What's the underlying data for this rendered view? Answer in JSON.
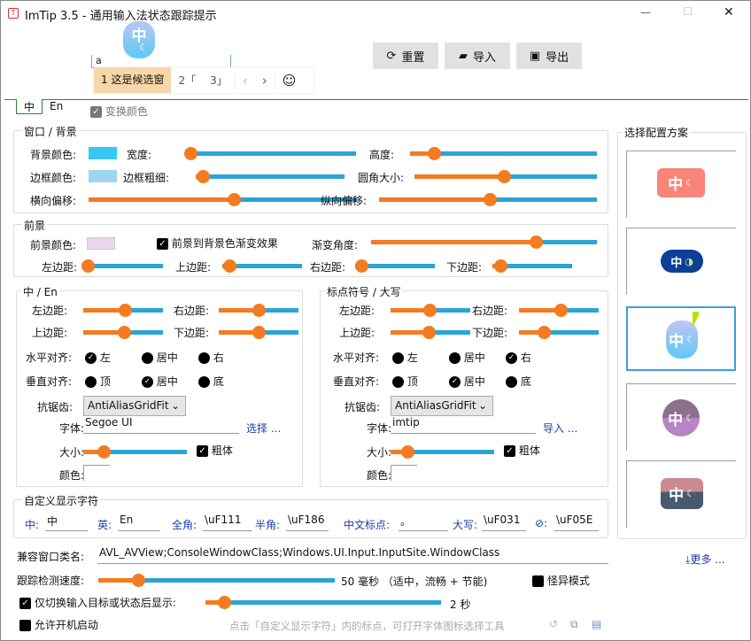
{
  "window": {
    "title": "ImTip 3.5 - 通用输入法状态跟踪提示",
    "minimize": "—",
    "maximize": "☐",
    "close": "✕"
  },
  "preview": {
    "badge_char": "中",
    "input_value": "a",
    "candidates": [
      "1 这是候选窗",
      "2「",
      "3」"
    ],
    "prev": "‹",
    "next": "›",
    "emoji": "☺"
  },
  "toolbar": {
    "reset": "重置",
    "import": "导入",
    "export": "导出"
  },
  "tabs": [
    "中",
    "En"
  ],
  "swap_colors": "变换颜色",
  "window_bg": {
    "title": "窗口 / 背景",
    "bg_color": "背景颜色:",
    "bg_color_value": "#38c6f4",
    "width": "宽度:",
    "height": "高度:",
    "border_color": "边框颜色:",
    "border_color_value": "#9ed3f2",
    "border_width": "边框粗细:",
    "corner": "圆角大小:",
    "h_offset": "横向偏移:",
    "v_offset": "纵向偏移:"
  },
  "foreground": {
    "title": "前景",
    "color": "前景颜色:",
    "color_value": "#ead6ea",
    "gradient": "前景到背景色渐变效果",
    "gradient_angle": "渐变角度:",
    "left": "左边距:",
    "top": "上边距:",
    "right": "右边距:",
    "bottom": "下边距:"
  },
  "zh_en": {
    "title": "中 / En",
    "left": "左边距:",
    "right": "右边距:",
    "top": "上边距:",
    "bottom": "下边距:",
    "halign": "水平对齐:",
    "valign": "垂直对齐:",
    "h_opts": [
      "左",
      "居中",
      "右"
    ],
    "v_opts": [
      "顶",
      "居中",
      "底"
    ],
    "h_selected": 0,
    "v_selected": 1,
    "aa": "抗锯齿:",
    "aa_value": "AntiAliasGridFit",
    "font": "字体:",
    "font_value": "Segoe UI",
    "font_action": "选择 ...",
    "size": "大小:",
    "bold": "粗体",
    "color": "颜色:"
  },
  "punct": {
    "title": "标点符号 / 大写",
    "left": "左边距:",
    "right": "右边距:",
    "top": "上边距:",
    "bottom": "下边距:",
    "halign": "水平对齐:",
    "valign": "垂直对齐:",
    "h_opts": [
      "左",
      "居中",
      "右"
    ],
    "v_opts": [
      "顶",
      "居中",
      "底"
    ],
    "h_selected": 2,
    "v_selected": 1,
    "aa": "抗锯齿:",
    "aa_value": "AntiAliasGridFit",
    "font": "字体:",
    "font_value": "imtip",
    "font_action": "导入 ...",
    "size": "大小:",
    "bold": "粗体",
    "color": "颜色:"
  },
  "custom": {
    "title": "自定义显示字符",
    "fields": [
      {
        "label": "中:",
        "value": "中"
      },
      {
        "label": "英:",
        "value": "En"
      },
      {
        "label": "全角:",
        "value": "\\uF111"
      },
      {
        "label": "半角:",
        "value": "\\uF186"
      },
      {
        "label": "中文标点:",
        "value": "。"
      },
      {
        "label": "大写:",
        "value": "\\uF031"
      },
      {
        "label": "⊘:",
        "value": "\\uF05E"
      }
    ]
  },
  "schemes": {
    "title": "选择配置方案",
    "selected": 2,
    "items": [
      {
        "char": "中",
        "color": "#f7857a"
      },
      {
        "char": "中",
        "color": "#0d3f98"
      },
      {
        "char": "中",
        "color": "#7fd0f5"
      },
      {
        "char": "中",
        "color": "#b784c4"
      },
      {
        "char": "中",
        "color": "#4a5a6e"
      }
    ]
  },
  "bottom": {
    "class_label": "兼容窗口类名:",
    "class_value": "AVL_AVView;ConsoleWindowClass;Windows.UI.Input.InputSite.WindowClass",
    "more": "更多 ...",
    "speed_label": "跟踪检测速度:",
    "speed_value": "50 毫秒 （适中，流畅 + 节能)",
    "weird_mode": "怪异模式",
    "only_switch": "仅切换输入目标或状态后显示:",
    "only_switch_value": "2 秒",
    "autostart": "允许开机启动",
    "hint": "点击「自定义显示字符」内的标点，可打开字体图标选择工具"
  },
  "sliders": {
    "width": 3,
    "height": 13,
    "border_width": 5,
    "corner": 49,
    "h_offset": 54,
    "v_offset": 51,
    "gradient_angle": 73,
    "fg_left": 5,
    "fg_top": 9,
    "fg_right": 8,
    "fg_bottom": 10,
    "zh_left": 52,
    "zh_right": 50,
    "zh_top": 51,
    "zh_bottom": 50,
    "zh_size": 20,
    "p_left": 49,
    "p_right": 52,
    "p_top": 48,
    "p_bottom": 31,
    "p_size": 16,
    "speed": 17,
    "only_switch": 8
  }
}
